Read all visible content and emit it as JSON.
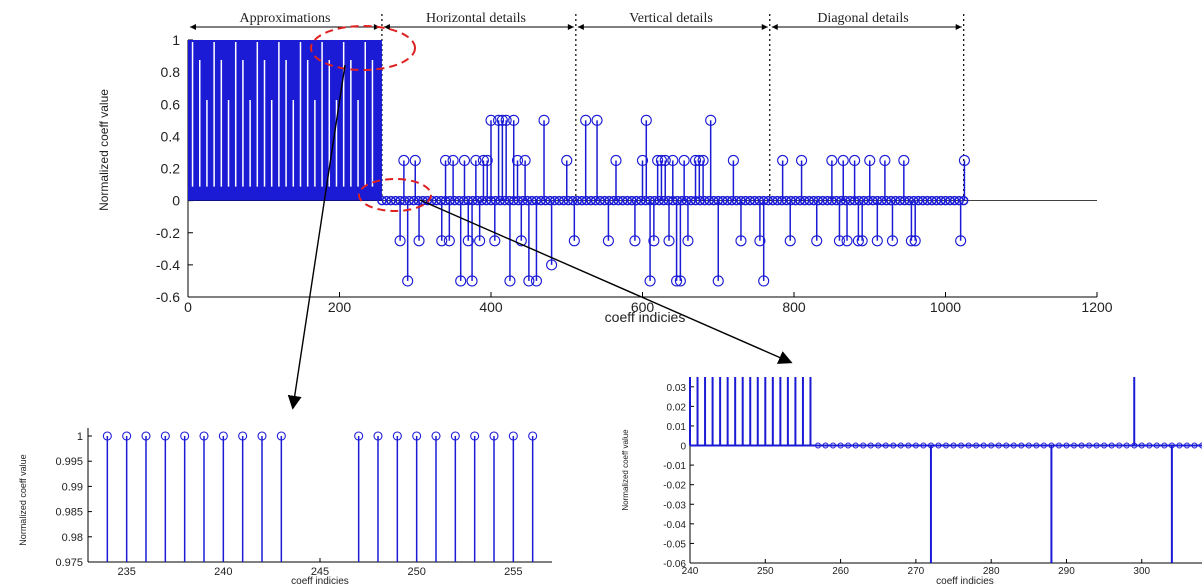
{
  "colors": {
    "stem": "#1b1bd6",
    "axis": "#000000",
    "highlight": "#e02020",
    "separator": "#000000"
  },
  "sections": [
    "Approximations",
    "Horizontal details",
    "Vertical details",
    "Diagonal details"
  ],
  "chart_data": [
    {
      "id": "main",
      "type": "stem",
      "xlabel": "coeff    indicies",
      "ylabel": "Normalized  coeff value",
      "xlim": [
        0,
        1200
      ],
      "ylim": [
        -0.6,
        1
      ],
      "xticks": [
        0,
        200,
        400,
        600,
        800,
        1000,
        1200
      ],
      "yticks": [
        -0.6,
        -0.4,
        -0.2,
        0,
        0.2,
        0.4,
        0.6,
        0.8,
        1
      ],
      "ytick_labels": [
        "-0.6",
        "-0.4",
        "-0.2",
        "0",
        "0.2",
        "0.4",
        "0.6",
        "0.8",
        "1"
      ],
      "section_boundaries": [
        256,
        512,
        768,
        1024
      ],
      "approximation_band": [
        0,
        256
      ],
      "points": [
        {
          "x": 280,
          "y": -0.25
        },
        {
          "x": 285,
          "y": 0.25
        },
        {
          "x": 290,
          "y": -0.5
        },
        {
          "x": 300,
          "y": 0.25
        },
        {
          "x": 305,
          "y": -0.25
        },
        {
          "x": 335,
          "y": -0.25
        },
        {
          "x": 340,
          "y": 0.25
        },
        {
          "x": 345,
          "y": -0.25
        },
        {
          "x": 350,
          "y": 0.25
        },
        {
          "x": 360,
          "y": -0.5
        },
        {
          "x": 365,
          "y": 0.25
        },
        {
          "x": 370,
          "y": -0.25
        },
        {
          "x": 375,
          "y": -0.5
        },
        {
          "x": 380,
          "y": 0.25
        },
        {
          "x": 385,
          "y": -0.25
        },
        {
          "x": 390,
          "y": 0.25
        },
        {
          "x": 395,
          "y": 0.25
        },
        {
          "x": 400,
          "y": 0.5
        },
        {
          "x": 405,
          "y": -0.25
        },
        {
          "x": 410,
          "y": 0.5
        },
        {
          "x": 415,
          "y": 0.5
        },
        {
          "x": 420,
          "y": 0.5
        },
        {
          "x": 425,
          "y": -0.5
        },
        {
          "x": 430,
          "y": 0.5
        },
        {
          "x": 435,
          "y": 0.25
        },
        {
          "x": 440,
          "y": -0.25
        },
        {
          "x": 445,
          "y": 0.25
        },
        {
          "x": 450,
          "y": -0.5
        },
        {
          "x": 460,
          "y": -0.5
        },
        {
          "x": 470,
          "y": 0.5
        },
        {
          "x": 480,
          "y": -0.4
        },
        {
          "x": 500,
          "y": 0.25
        },
        {
          "x": 510,
          "y": -0.25
        },
        {
          "x": 525,
          "y": 0.5
        },
        {
          "x": 540,
          "y": 0.5
        },
        {
          "x": 555,
          "y": -0.25
        },
        {
          "x": 565,
          "y": 0.25
        },
        {
          "x": 590,
          "y": -0.25
        },
        {
          "x": 600,
          "y": 0.25
        },
        {
          "x": 605,
          "y": 0.5
        },
        {
          "x": 610,
          "y": -0.5
        },
        {
          "x": 615,
          "y": -0.25
        },
        {
          "x": 620,
          "y": 0.25
        },
        {
          "x": 625,
          "y": 0.25
        },
        {
          "x": 630,
          "y": 0.25
        },
        {
          "x": 635,
          "y": -0.25
        },
        {
          "x": 640,
          "y": 0.25
        },
        {
          "x": 645,
          "y": -0.5
        },
        {
          "x": 650,
          "y": -0.5
        },
        {
          "x": 655,
          "y": 0.25
        },
        {
          "x": 660,
          "y": -0.25
        },
        {
          "x": 670,
          "y": 0.25
        },
        {
          "x": 675,
          "y": 0.25
        },
        {
          "x": 680,
          "y": 0.25
        },
        {
          "x": 690,
          "y": 0.5
        },
        {
          "x": 700,
          "y": -0.5
        },
        {
          "x": 720,
          "y": 0.25
        },
        {
          "x": 730,
          "y": -0.25
        },
        {
          "x": 755,
          "y": -0.25
        },
        {
          "x": 760,
          "y": -0.5
        },
        {
          "x": 785,
          "y": 0.25
        },
        {
          "x": 795,
          "y": -0.25
        },
        {
          "x": 810,
          "y": 0.25
        },
        {
          "x": 830,
          "y": -0.25
        },
        {
          "x": 850,
          "y": 0.25
        },
        {
          "x": 860,
          "y": -0.25
        },
        {
          "x": 865,
          "y": 0.25
        },
        {
          "x": 870,
          "y": -0.25
        },
        {
          "x": 880,
          "y": 0.25
        },
        {
          "x": 885,
          "y": -0.25
        },
        {
          "x": 890,
          "y": -0.25
        },
        {
          "x": 900,
          "y": 0.25
        },
        {
          "x": 910,
          "y": -0.25
        },
        {
          "x": 920,
          "y": 0.25
        },
        {
          "x": 930,
          "y": -0.25
        },
        {
          "x": 945,
          "y": 0.25
        },
        {
          "x": 955,
          "y": -0.25
        },
        {
          "x": 960,
          "y": -0.25
        },
        {
          "x": 1020,
          "y": -0.25
        },
        {
          "x": 1025,
          "y": 0.25
        }
      ]
    },
    {
      "id": "zoom-left",
      "type": "stem",
      "xlabel": "coeff    indicies",
      "ylabel": "Normalized  coeff value",
      "xlim": [
        233,
        257
      ],
      "ylim": [
        0.975,
        1
      ],
      "xticks": [
        235,
        240,
        245,
        250,
        255
      ],
      "yticks": [
        0.975,
        0.98,
        0.985,
        0.99,
        0.995,
        1
      ],
      "ytick_labels": [
        "0.975",
        "0.98",
        "0.985",
        "0.99",
        "0.995",
        "1"
      ],
      "x": [
        234,
        235,
        236,
        237,
        238,
        239,
        240,
        241,
        242,
        243,
        247,
        248,
        249,
        250,
        251,
        252,
        253,
        254,
        255,
        256
      ],
      "y": [
        1,
        1,
        1,
        1,
        1,
        1,
        1,
        1,
        1,
        1,
        1,
        1,
        1,
        1,
        1,
        1,
        1,
        1,
        1,
        1
      ]
    },
    {
      "id": "zoom-right",
      "type": "stem",
      "xlabel": "coeff    indicies",
      "ylabel": "Normalized coeff value",
      "xlim": [
        240,
        308
      ],
      "ylim": [
        -0.06,
        0.035
      ],
      "xticks": [
        240,
        250,
        260,
        270,
        280,
        290,
        300
      ],
      "yticks": [
        -0.06,
        -0.05,
        -0.04,
        -0.03,
        -0.02,
        -0.01,
        0,
        0.01,
        0.02,
        0.03
      ],
      "ytick_labels": [
        "-0.06",
        "-0.05",
        "-0.04",
        "-0.03",
        "-0.02",
        "-0.01",
        "0",
        "0.01",
        "0.02",
        "0.03"
      ],
      "approx_stems": {
        "from": 240,
        "to": 256,
        "value": 0.035
      },
      "marker_row": {
        "from": 257,
        "to": 308,
        "value": 0
      },
      "spikes": [
        {
          "x": 272,
          "y": -0.06
        },
        {
          "x": 288,
          "y": -0.06
        },
        {
          "x": 299,
          "y": 0.035
        },
        {
          "x": 304,
          "y": -0.06
        }
      ]
    }
  ]
}
